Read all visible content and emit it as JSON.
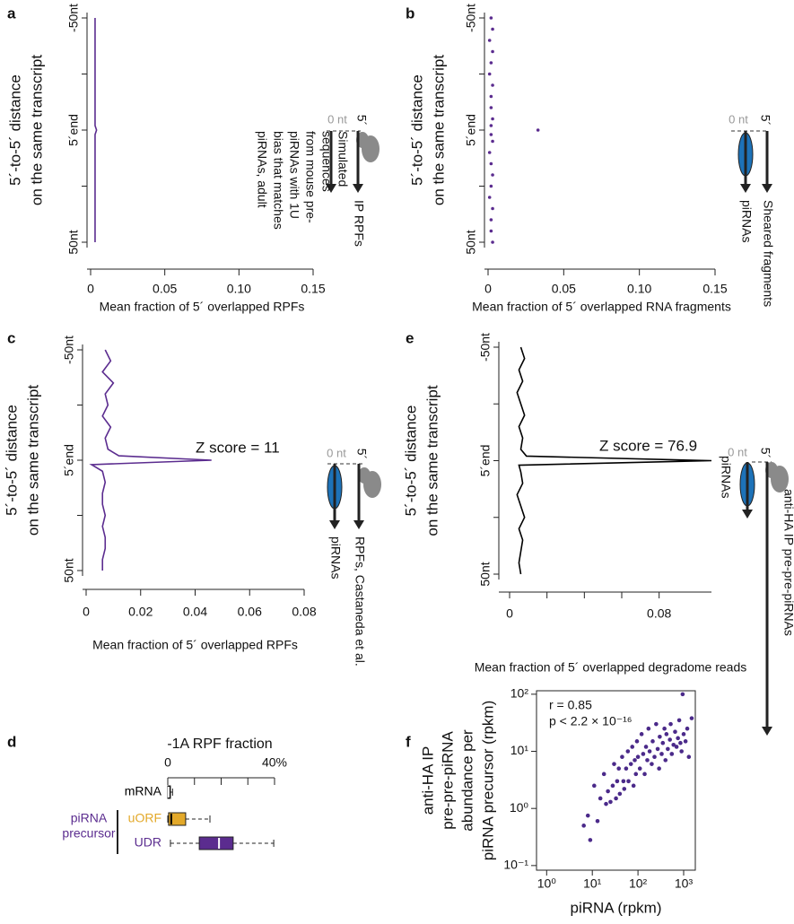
{
  "chart_data": [
    {
      "type": "line",
      "panel_label": "a",
      "ylabel_lines": [
        "5´-to-5´ distance",
        "on the same transcript"
      ],
      "xlabel": "Mean fraction of 5´ overlapped RPFs",
      "x": [
        -50,
        -45,
        -40,
        -35,
        -30,
        -25,
        -20,
        -15,
        -10,
        -5,
        -2,
        0,
        2,
        5,
        10,
        15,
        20,
        25,
        30,
        35,
        40,
        45,
        50
      ],
      "values": [
        0.003,
        0.003,
        0.003,
        0.003,
        0.003,
        0.003,
        0.003,
        0.003,
        0.003,
        0.003,
        0.003,
        0.004,
        0.003,
        0.003,
        0.003,
        0.003,
        0.003,
        0.003,
        0.003,
        0.003,
        0.003,
        0.003,
        0.003
      ],
      "color": "#5b2c8f",
      "xlim": [
        0,
        0.15
      ],
      "xticks": [
        0,
        0.05,
        {
          "value": 0.1,
          "label": "0.10"
        },
        0.15
      ],
      "ylim": [
        -50,
        50
      ],
      "y_reversed": true,
      "yticks": [
        {
          "value": -50,
          "label": "-50nt"
        },
        {
          "value": 0,
          "label": "5´end"
        },
        {
          "value": 50,
          "label": "50nt"
        }
      ],
      "yminor": [
        -25,
        25
      ],
      "diagram": {
        "zero_label": "0 nt",
        "five_prime": "5´",
        "left_label_lines": [
          "Simulated",
          "sequences",
          "from mouse pre-",
          "piRNAs with 1U",
          "bias that matches",
          "piRNAs, adult"
        ],
        "right_label_lines": [
          "IP RPFs"
        ]
      }
    },
    {
      "type": "dots",
      "panel_label": "b",
      "ylabel_lines": [
        "5´-to-5´ distance",
        "on the same transcript"
      ],
      "xlabel": "Mean fraction of 5´ overlapped RNA fragments",
      "x": [
        -50,
        -45,
        -40,
        -35,
        -30,
        -25,
        -20,
        -15,
        -10,
        -5,
        -2,
        0,
        2,
        5,
        10,
        15,
        20,
        25,
        30,
        35,
        40,
        45,
        50
      ],
      "values": [
        0.002,
        0.003,
        0.001,
        0.003,
        0.002,
        0.001,
        0.003,
        0.002,
        0.002,
        0.003,
        0.002,
        0.033,
        0.002,
        0.003,
        0.001,
        0.002,
        0.003,
        0.002,
        0.001,
        0.003,
        0.002,
        0.002,
        0.003
      ],
      "color": "#5b2c8f",
      "xlim": [
        0,
        0.15
      ],
      "xticks": [
        0,
        0.05,
        {
          "value": 0.1,
          "label": "0.10"
        },
        0.15
      ],
      "ylim": [
        -50,
        50
      ],
      "y_reversed": true,
      "yticks": [
        {
          "value": -50,
          "label": "-50nt"
        },
        {
          "value": 0,
          "label": "5´end"
        },
        {
          "value": 50,
          "label": "50nt"
        }
      ],
      "yminor": [
        -25,
        25
      ],
      "diagram": {
        "zero_label": "0 nt",
        "five_prime": "5´",
        "left_label_lines": [
          "piRNAs"
        ],
        "right_label_lines": [
          "Sheared fragments"
        ]
      }
    },
    {
      "type": "line",
      "panel_label": "c",
      "ylabel_lines": [
        "5´-to-5´ distance",
        "on the same transcript"
      ],
      "xlabel": "Mean fraction of 5´ overlapped RPFs",
      "annotation": "Z score = 11",
      "x": [
        -50,
        -45,
        -40,
        -35,
        -30,
        -25,
        -20,
        -15,
        -10,
        -5,
        -2,
        0,
        2,
        5,
        10,
        15,
        20,
        25,
        30,
        35,
        40,
        45,
        50
      ],
      "values": [
        0.007,
        0.009,
        0.006,
        0.01,
        0.007,
        0.008,
        0.006,
        0.009,
        0.007,
        0.008,
        0.012,
        0.046,
        0.002,
        0.006,
        0.007,
        0.006,
        0.006,
        0.007,
        0.006,
        0.007,
        0.007,
        0.006,
        0.006
      ],
      "color": "#5b2c8f",
      "xlim": [
        0,
        0.08
      ],
      "xticks": [
        0,
        0.02,
        0.04,
        0.06,
        0.08
      ],
      "ylim": [
        -50,
        50
      ],
      "y_reversed": true,
      "yticks": [
        {
          "value": -50,
          "label": "-50nt"
        },
        {
          "value": 0,
          "label": "5´end"
        },
        {
          "value": 50,
          "label": "50nt"
        }
      ],
      "yminor": [
        -25,
        25
      ],
      "diagram": {
        "zero_label": "0 nt",
        "five_prime": "5´",
        "left_label_lines": [
          "piRNAs"
        ],
        "right_label_lines": [
          "RPFs, Castaneda et al."
        ]
      }
    },
    {
      "type": "line",
      "panel_label": "e",
      "ylabel_lines": [
        "5´-to-5´ distance",
        "on the same transcript"
      ],
      "xlabel": "Mean fraction of 5´ overlapped degradome reads",
      "annotation": "Z score = 76.9",
      "x": [
        -50,
        -45,
        -40,
        -35,
        -30,
        -25,
        -20,
        -15,
        -10,
        -5,
        -2,
        0,
        2,
        5,
        10,
        15,
        20,
        25,
        30,
        35,
        40,
        45,
        50
      ],
      "values": [
        0.006,
        0.008,
        0.005,
        0.007,
        0.004,
        0.006,
        0.008,
        0.005,
        0.007,
        0.006,
        0.009,
        0.108,
        0.005,
        0.006,
        0.007,
        0.004,
        0.006,
        0.008,
        0.005,
        0.007,
        0.006,
        0.005,
        0.006
      ],
      "color": "#000000",
      "xlim": [
        0,
        0.108
      ],
      "xticks": [
        0,
        0.08
      ],
      "xminor": [
        0.02,
        0.04,
        0.06
      ],
      "ylim": [
        -50,
        50
      ],
      "y_reversed": true,
      "yticks": [
        {
          "value": -50,
          "label": "-50nt"
        },
        {
          "value": 0,
          "label": "5´end"
        },
        {
          "value": 50,
          "label": "50nt"
        }
      ],
      "yminor": [
        -25,
        25
      ],
      "diagram": {
        "zero_label": "0 nt",
        "five_prime": "5´",
        "left_label_lines": [
          "piRNAs"
        ],
        "right_label_lines": [
          "anti-HA IP pre-pre-piRNAs"
        ]
      }
    },
    {
      "type": "box",
      "panel_label": "d",
      "title": "-1A RPF fraction",
      "categories": [
        "mRNA",
        "uORF",
        "UDR"
      ],
      "group_label_lines": [
        "piRNA",
        "precursor"
      ],
      "group_color": "#5b2c8f",
      "whisker_low": [
        0,
        0,
        1
      ],
      "q1": [
        0,
        0.3,
        11.8
      ],
      "median": [
        0.3,
        1.3,
        19.2
      ],
      "q3": [
        1,
        6.7,
        24.5
      ],
      "whisker_high": [
        1.8,
        15.8,
        39.7
      ],
      "colors": [
        "#000000",
        "#e3a92a",
        "#5b2c8f"
      ],
      "median_colors": [
        "#ffffff",
        "#000000",
        "#ffffff"
      ],
      "xlim": [
        0,
        40
      ],
      "xticks": [
        0,
        {
          "value": 40,
          "label": "40%"
        }
      ],
      "xminor": [
        10,
        20,
        30
      ]
    },
    {
      "type": "scatter",
      "panel_label": "f",
      "xlabel": "piRNA (rpkm)",
      "ylabel_lines": [
        "anti-HA IP",
        "pre-pre-piRNA",
        "abundance per",
        "piRNA precursor (rpkm)"
      ],
      "annotations": [
        "r = 0.85",
        "p < 2.2 × 10⁻¹⁶"
      ],
      "log_x": true,
      "log_y": true,
      "color": "#4b2a8a",
      "xlim": [
        0.6,
        1800
      ],
      "ylim": [
        0.083,
        115
      ],
      "xticks": [
        {
          "value": 1,
          "label": "10⁰"
        },
        {
          "value": 10,
          "label": "10¹"
        },
        {
          "value": 100,
          "label": "10²"
        },
        {
          "value": 1000,
          "label": "10³"
        }
      ],
      "yticks": [
        {
          "value": 0.1,
          "label": "10⁻¹"
        },
        {
          "value": 1,
          "label": "10⁰"
        },
        {
          "value": 10,
          "label": "10¹"
        },
        {
          "value": 100,
          "label": "10²"
        }
      ],
      "x": [
        6.5,
        8,
        9,
        11,
        13,
        15,
        18,
        20,
        22,
        25,
        28,
        30,
        33,
        35,
        38,
        40,
        45,
        48,
        50,
        55,
        60,
        62,
        70,
        75,
        80,
        85,
        90,
        95,
        100,
        110,
        120,
        130,
        140,
        150,
        160,
        170,
        180,
        200,
        210,
        230,
        250,
        270,
        290,
        300,
        330,
        350,
        380,
        400,
        420,
        450,
        500,
        520,
        550,
        600,
        650,
        700,
        750,
        800,
        850,
        900,
        950,
        1000,
        1100,
        1200,
        1500,
        1300
      ],
      "values": [
        0.5,
        0.75,
        0.28,
        2.5,
        0.6,
        1.5,
        4,
        1.2,
        2,
        1.3,
        2.5,
        6,
        1.5,
        3,
        5,
        1.8,
        8,
        3,
        2.2,
        5,
        10,
        3,
        6,
        12,
        2.5,
        7,
        4,
        15,
        8,
        5,
        20,
        9,
        4,
        12,
        7,
        25,
        10,
        6,
        15,
        8,
        30,
        11,
        5,
        18,
        9,
        14,
        25,
        7,
        20,
        11,
        16,
        30,
        9,
        13,
        22,
        12,
        17,
        35,
        14,
        10,
        100,
        20,
        15,
        25,
        38,
        8
      ]
    }
  ]
}
